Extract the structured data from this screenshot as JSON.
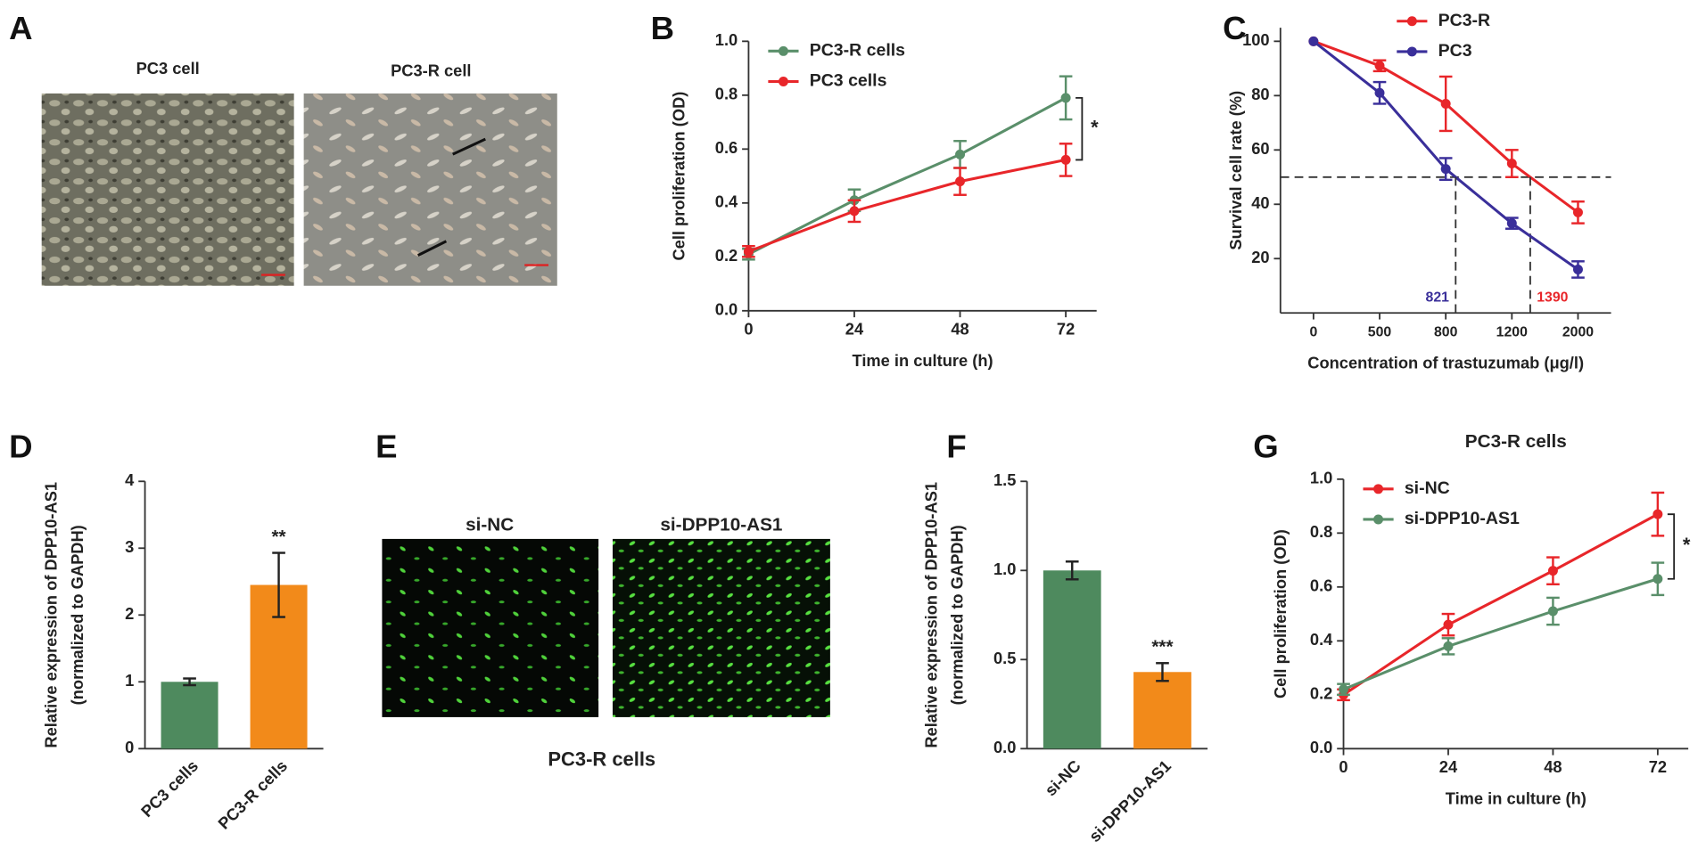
{
  "images": [
    {
      "panel": "A",
      "labels": [
        "PC3 cell",
        "PC3-R cell"
      ]
    },
    {
      "panel": "E",
      "labels": [
        "si-NC",
        "si-DPP10-AS1"
      ],
      "caption": "PC3-R cells"
    }
  ],
  "chart_data": [
    {
      "type": "line",
      "panel": "B",
      "ylabel": [
        "Cell proliferation (OD)"
      ],
      "xlabel": "Time in culture (h)",
      "x": [
        0,
        24,
        48,
        72
      ],
      "xlim": [
        0,
        79
      ],
      "xticks": [
        0,
        24,
        48,
        72
      ],
      "ylim": [
        0,
        1.0
      ],
      "yticks": [
        {
          "value": 0,
          "label": "0.0"
        },
        {
          "value": 0.2,
          "label": "0.2"
        },
        {
          "value": 0.4,
          "label": "0.4"
        },
        {
          "value": 0.6,
          "label": "0.6"
        },
        {
          "value": 0.8,
          "label": "0.8"
        },
        {
          "value": 1.0,
          "label": "1.0"
        }
      ],
      "legend": "upper left",
      "significance": "*",
      "series": [
        {
          "name": "PC3-R cells",
          "color": "#5a8f6a",
          "values": [
            0.21,
            0.41,
            0.58,
            0.79
          ],
          "errors": [
            0.02,
            0.04,
            0.05,
            0.08
          ]
        },
        {
          "name": "PC3 cells",
          "color": "#e8262a",
          "values": [
            0.22,
            0.37,
            0.48,
            0.56
          ],
          "errors": [
            0.02,
            0.04,
            0.05,
            0.06
          ]
        }
      ]
    },
    {
      "type": "line",
      "panel": "C",
      "ylabel": [
        "Survival cell rate (%)"
      ],
      "xlabel": "Concentration of trastuzumab (μg/l)",
      "categories": [
        "0",
        "500",
        "800",
        "1200",
        "2000"
      ],
      "ylim": [
        0,
        105
      ],
      "yticks": [
        20,
        40,
        60,
        80,
        100
      ],
      "reference_line": 50,
      "legend": "upper center",
      "series": [
        {
          "name": "PC3-R",
          "color": "#e8262a",
          "values": [
            100,
            91,
            77,
            55,
            37
          ],
          "errors": [
            0,
            2,
            10,
            5,
            4
          ],
          "ic50": 1390
        },
        {
          "name": "PC3",
          "color": "#3a2f9a",
          "values": [
            100,
            81,
            53,
            33,
            16
          ],
          "errors": [
            0,
            4,
            4,
            2,
            3
          ],
          "ic50": 821
        }
      ]
    },
    {
      "type": "bar",
      "panel": "D",
      "ylabel": [
        "Relative expression of DPP10-AS1",
        "(normalized to GAPDH)"
      ],
      "categories": [
        "PC3 cells",
        "PC3-R cells"
      ],
      "values": [
        1.0,
        2.45
      ],
      "errors": [
        0.05,
        0.48
      ],
      "colors": [
        "#4e8a5e",
        "#f28a1a"
      ],
      "ylim": [
        0,
        4
      ],
      "yticks": [
        0,
        1,
        2,
        3,
        4
      ],
      "significance": "**"
    },
    {
      "type": "bar",
      "panel": "F",
      "ylabel": [
        "Relative expression of DPP10-AS1",
        "(normalized to GAPDH)"
      ],
      "categories": [
        "si-NC",
        "si-DPP10-AS1"
      ],
      "values": [
        1.0,
        0.43
      ],
      "errors": [
        0.05,
        0.05
      ],
      "colors": [
        "#4e8a5e",
        "#f28a1a"
      ],
      "ylim": [
        0,
        1.5
      ],
      "yticks": [
        {
          "value": 0,
          "label": "0.0"
        },
        {
          "value": 0.5,
          "label": "0.5"
        },
        {
          "value": 1.0,
          "label": "1.0"
        },
        {
          "value": 1.5,
          "label": "1.5"
        }
      ],
      "significance": "***"
    },
    {
      "type": "line",
      "panel": "G",
      "title": "PC3-R cells",
      "ylabel": [
        "Cell proliferation (OD)"
      ],
      "xlabel": "Time in culture (h)",
      "x": [
        0,
        24,
        48,
        72
      ],
      "xlim": [
        0,
        79
      ],
      "xticks": [
        0,
        24,
        48,
        72
      ],
      "ylim": [
        0,
        1.0
      ],
      "yticks": [
        {
          "value": 0,
          "label": "0.0"
        },
        {
          "value": 0.2,
          "label": "0.2"
        },
        {
          "value": 0.4,
          "label": "0.4"
        },
        {
          "value": 0.6,
          "label": "0.6"
        },
        {
          "value": 0.8,
          "label": "0.8"
        },
        {
          "value": 1.0,
          "label": "1.0"
        }
      ],
      "legend": "upper left",
      "significance": "*",
      "series": [
        {
          "name": "si-NC",
          "color": "#e8262a",
          "values": [
            0.2,
            0.46,
            0.66,
            0.87
          ],
          "errors": [
            0.02,
            0.04,
            0.05,
            0.08
          ]
        },
        {
          "name": "si-DPP10-AS1",
          "color": "#5a8f6a",
          "values": [
            0.22,
            0.38,
            0.51,
            0.63
          ],
          "errors": [
            0.02,
            0.03,
            0.05,
            0.06
          ]
        }
      ]
    }
  ]
}
